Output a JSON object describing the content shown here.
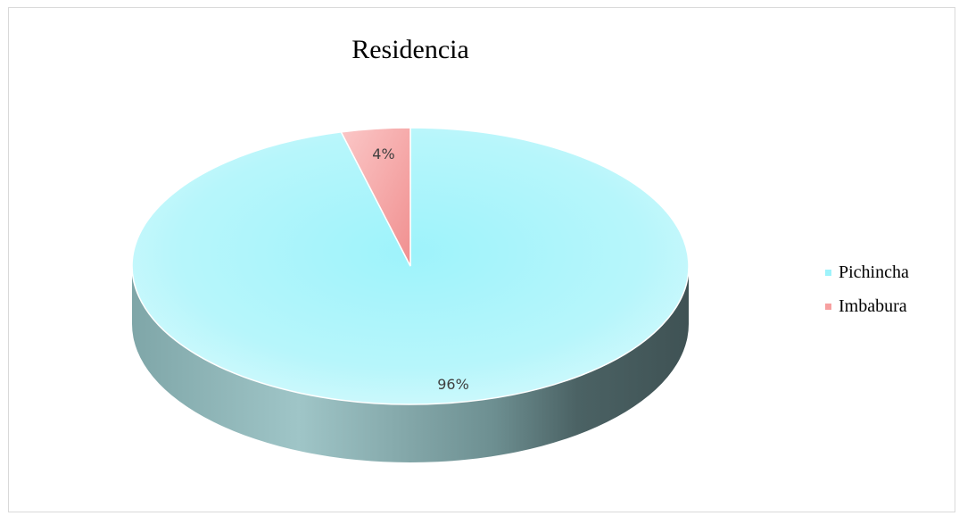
{
  "chart_data": {
    "type": "pie",
    "title": "Residencia",
    "categories": [
      "Pichincha",
      "Imbabura"
    ],
    "values": [
      96,
      4
    ],
    "data_labels": [
      "96%",
      "4%"
    ],
    "colors": [
      "#b3f6fb",
      "#f7a0a0"
    ],
    "legend_position": "right"
  }
}
